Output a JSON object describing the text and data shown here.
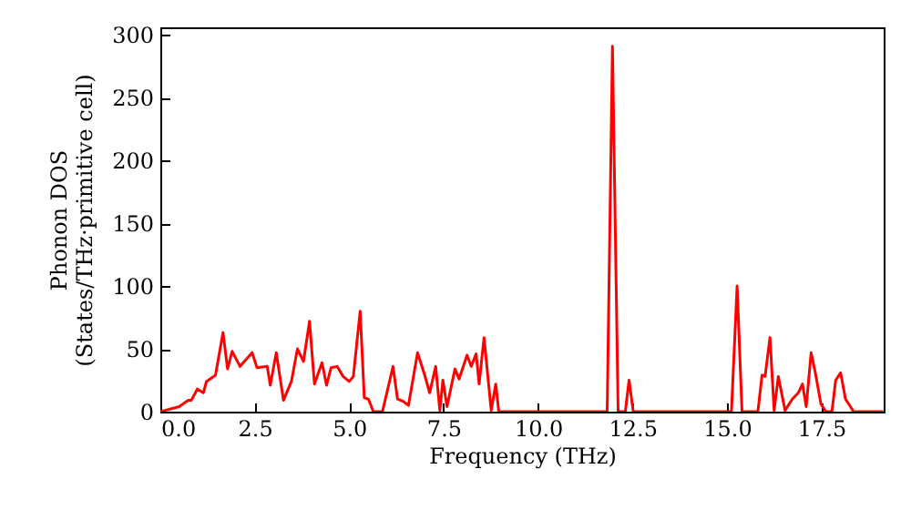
{
  "chart_data": {
    "type": "line",
    "xlabel": "Frequency (THz)",
    "ylabel": "Phonon DOS\n(States/THz·primitive cell)",
    "x": [
      0,
      0.5,
      0.74,
      0.82,
      0.98,
      1.14,
      1.22,
      1.46,
      1.66,
      1.78,
      1.9,
      2.11,
      2.43,
      2.56,
      2.83,
      2.91,
      3.07,
      3.26,
      3.47,
      3.63,
      3.79,
      3.95,
      4.08,
      4.28,
      4.4,
      4.52,
      4.68,
      4.84,
      5.0,
      5.11,
      5.29,
      5.4,
      5.51,
      5.64,
      5.88,
      6.16,
      6.28,
      6.44,
      6.57,
      6.81,
      7.0,
      7.13,
      7.29,
      7.4,
      7.48,
      7.59,
      7.8,
      7.91,
      8.12,
      8.23,
      8.36,
      8.44,
      8.57,
      8.76,
      8.88,
      8.96,
      9.1,
      11.83,
      11.97,
      12.12,
      12.31,
      12.41,
      12.52,
      15.12,
      15.27,
      15.4,
      15.82,
      15.93,
      16.01,
      16.14,
      16.25,
      16.36,
      16.54,
      16.73,
      16.89,
      17.0,
      17.1,
      17.23,
      17.34,
      17.49,
      17.62,
      17.78,
      17.88,
      18.01,
      18.14,
      18.27,
      18.35,
      19.14
    ],
    "series": [
      {
        "color": "#ff0000",
        "values": [
          0,
          4,
          9,
          9,
          18,
          15,
          24,
          29,
          63,
          34,
          48,
          36,
          47,
          35,
          36,
          21,
          47,
          9,
          24,
          50,
          40,
          72,
          22,
          39,
          21,
          35,
          36,
          28,
          24,
          28,
          80,
          11,
          10,
          0,
          0,
          36,
          10,
          8,
          5,
          47,
          29,
          15,
          36,
          1,
          25,
          4,
          34,
          26,
          45,
          36,
          46,
          22,
          59,
          1,
          22,
          0,
          0,
          0,
          291,
          0,
          0,
          25,
          0,
          0,
          100,
          0,
          0,
          29,
          28,
          59,
          1,
          28,
          1,
          10,
          15,
          22,
          4,
          47,
          31,
          6,
          0,
          0,
          25,
          31,
          10,
          4,
          0,
          0
        ]
      }
    ],
    "xlim": [
      0,
      19.15
    ],
    "ylim": [
      0,
      306
    ],
    "xticks": [
      {
        "value": 0,
        "label": "0.0"
      },
      2.5,
      {
        "value": 5,
        "label": "5.0"
      },
      7.5,
      {
        "value": 10,
        "label": "10.0"
      },
      12.5,
      {
        "value": 15,
        "label": "15.0"
      },
      17.5
    ],
    "yticks": [
      0,
      50,
      100,
      150,
      200,
      250,
      300
    ]
  }
}
